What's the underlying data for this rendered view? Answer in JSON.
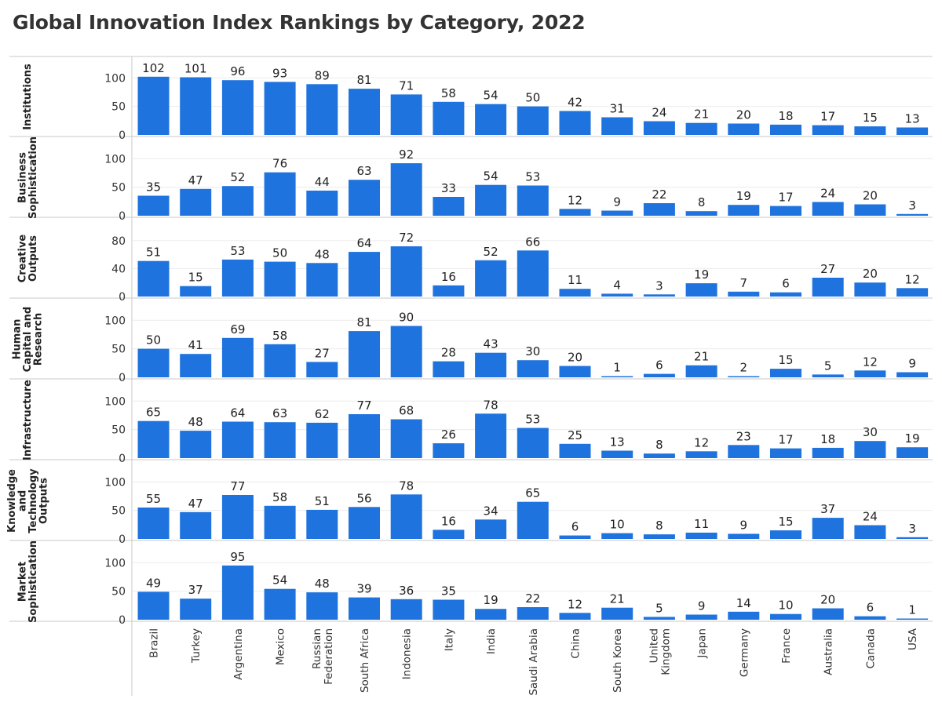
{
  "chart_data": {
    "type": "bar",
    "title": "Global Innovation Index Rankings by Category, 2022",
    "bar_color": "#1f73de",
    "categories": [
      "Brazil",
      "Turkey",
      "Argentina",
      "Mexico",
      "Russian Federation",
      "South Africa",
      "Indonesia",
      "Italy",
      "India",
      "Saudi Arabia",
      "China",
      "South Korea",
      "United Kingdom",
      "Japan",
      "Germany",
      "France",
      "Australia",
      "Canada",
      "USA"
    ],
    "category_lines": [
      [
        "Brazil"
      ],
      [
        "Turkey"
      ],
      [
        "Argentina"
      ],
      [
        "Mexico"
      ],
      [
        "Russian",
        "Federation"
      ],
      [
        "South Africa"
      ],
      [
        "Indonesia"
      ],
      [
        "Italy"
      ],
      [
        "India"
      ],
      [
        "Saudi Arabia"
      ],
      [
        "China"
      ],
      [
        "South Korea"
      ],
      [
        "United",
        "Kingdom"
      ],
      [
        "Japan"
      ],
      [
        "Germany"
      ],
      [
        "France"
      ],
      [
        "Australia"
      ],
      [
        "Canada"
      ],
      [
        "USA"
      ]
    ],
    "series": [
      {
        "name": "Institutions",
        "label_lines": [
          "Institutions"
        ],
        "yticks": [
          0,
          50,
          100
        ],
        "ylim": [
          0,
          110
        ],
        "values": [
          102,
          101,
          96,
          93,
          89,
          81,
          71,
          58,
          54,
          50,
          42,
          31,
          24,
          21,
          20,
          18,
          17,
          15,
          13
        ]
      },
      {
        "name": "Business Sophistication",
        "label_lines": [
          "Business",
          "Sophistication"
        ],
        "yticks": [
          0,
          50,
          100
        ],
        "ylim": [
          0,
          110
        ],
        "values": [
          35,
          47,
          52,
          76,
          44,
          63,
          92,
          33,
          54,
          53,
          12,
          9,
          22,
          8,
          19,
          17,
          24,
          20,
          3
        ]
      },
      {
        "name": "Creative Outputs",
        "label_lines": [
          "Creative",
          "Outputs"
        ],
        "yticks": [
          0,
          40,
          80
        ],
        "ylim": [
          0,
          90
        ],
        "values": [
          51,
          15,
          53,
          50,
          48,
          64,
          72,
          16,
          52,
          66,
          11,
          4,
          3,
          19,
          7,
          6,
          27,
          20,
          12
        ]
      },
      {
        "name": "Human Capital and Research",
        "label_lines": [
          "Human",
          "Capital and",
          "Research"
        ],
        "yticks": [
          0,
          50,
          100
        ],
        "ylim": [
          0,
          110
        ],
        "values": [
          50,
          41,
          69,
          58,
          27,
          81,
          90,
          28,
          43,
          30,
          20,
          1,
          6,
          21,
          2,
          15,
          5,
          12,
          9
        ]
      },
      {
        "name": "Infrastructure",
        "label_lines": [
          "Infrastructure"
        ],
        "yticks": [
          0,
          50,
          100
        ],
        "ylim": [
          0,
          110
        ],
        "values": [
          65,
          48,
          64,
          63,
          62,
          77,
          68,
          26,
          78,
          53,
          25,
          13,
          8,
          12,
          23,
          17,
          18,
          30,
          19
        ]
      },
      {
        "name": "Knowledge and Technology Outputs",
        "label_lines": [
          "Knowledge",
          "and",
          "Technology",
          "Outputs"
        ],
        "yticks": [
          0,
          50,
          100
        ],
        "ylim": [
          0,
          110
        ],
        "values": [
          55,
          47,
          77,
          58,
          51,
          56,
          78,
          16,
          34,
          65,
          6,
          10,
          8,
          11,
          9,
          15,
          37,
          24,
          3
        ]
      },
      {
        "name": "Market Sophistication",
        "label_lines": [
          "Market",
          "Sophistication"
        ],
        "yticks": [
          0,
          50,
          100
        ],
        "ylim": [
          0,
          110
        ],
        "values": [
          49,
          37,
          95,
          54,
          48,
          39,
          36,
          35,
          19,
          22,
          12,
          21,
          5,
          9,
          14,
          10,
          20,
          6,
          1
        ]
      }
    ]
  }
}
